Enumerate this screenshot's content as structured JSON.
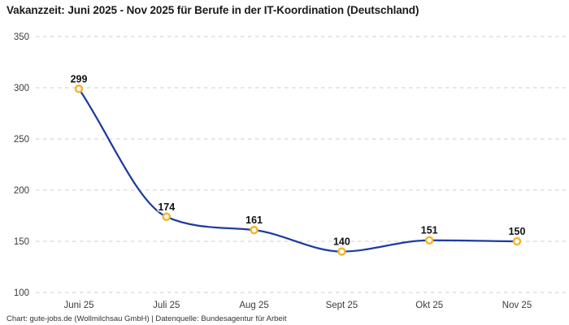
{
  "header": {
    "title": "Vakanzzeit: Juni 2025 - Nov 2025 für Berufe in der IT-Koordination (Deutschland)"
  },
  "footer": {
    "attribution": "Chart: gute-jobs.de (Wollmilchsau GmbH) | Datenquelle: Bundesagentur für Arbeit"
  },
  "colors": {
    "line": "#1e3c9e",
    "marker": "#f2b62c",
    "marker_fill": "#ffffff",
    "grid": "#cccccc",
    "title_text": "#1a1a1a",
    "axis_text": "#3c3c3c",
    "point_label_text": "#111111"
  },
  "chart_data": {
    "type": "line",
    "title": "Vakanzzeit: Juni 2025 - Nov 2025 für Berufe in der IT-Koordination (Deutschland)",
    "categories": [
      "Juni 25",
      "Juli 25",
      "Aug 25",
      "Sept 25",
      "Okt 25",
      "Nov 25"
    ],
    "values": [
      299,
      174,
      161,
      140,
      151,
      150
    ],
    "point_labels": [
      "299",
      "174",
      "161",
      "140",
      "151",
      "150"
    ],
    "xlabel": "",
    "ylabel": "",
    "ylim": [
      100,
      350
    ],
    "yticks": [
      100,
      150,
      200,
      250,
      300,
      350
    ],
    "grid": "horizontal-dashed",
    "legend": "none",
    "curve": "smooth-monotone",
    "marker_style": "open-circle"
  }
}
